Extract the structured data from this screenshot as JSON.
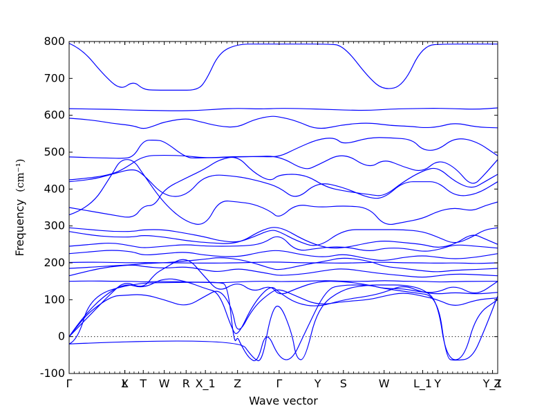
{
  "chart_data": {
    "type": "line",
    "xlabel": "Wave vector",
    "ylabel": "Frequency",
    "ylabel_unit": "(cm⁻¹)",
    "ylim": [
      -100,
      800
    ],
    "yticks": [
      -100,
      0,
      100,
      200,
      300,
      400,
      500,
      600,
      700,
      800
    ],
    "zero_line": true,
    "line_color": "#0000ff",
    "x_path_positions": [
      0,
      0.13,
      0.13,
      0.173,
      0.222,
      0.273,
      0.318,
      0.393,
      0.49,
      0.58,
      0.64,
      0.735,
      0.825,
      0.86,
      0.988,
      1.0
    ],
    "x_tick_labels": [
      "Γ",
      "X",
      "L",
      "T",
      "W",
      "R",
      "X_1",
      "Z",
      "Γ",
      "Y",
      "S",
      "W",
      "L_1",
      "Y",
      "Y_1",
      "Z"
    ],
    "series": [
      {
        "x": [
          0,
          0.03,
          0.08,
          0.12,
          0.15,
          0.173,
          0.2,
          0.25,
          0.3,
          0.32,
          0.35,
          0.393,
          0.45,
          0.49,
          0.55,
          0.6,
          0.64,
          0.7,
          0.735,
          0.78,
          0.825,
          0.88,
          0.95,
          1.0
        ],
        "y": [
          795,
          780,
          710,
          668,
          693,
          670,
          668,
          668,
          668,
          695,
          770,
          793,
          793,
          793,
          793,
          793,
          790,
          700,
          668,
          680,
          790,
          793,
          793,
          793
        ]
      },
      {
        "x": [
          0,
          0.05,
          0.1,
          0.15,
          0.2,
          0.25,
          0.3,
          0.35,
          0.393,
          0.45,
          0.49,
          0.55,
          0.6,
          0.65,
          0.7,
          0.75,
          0.8,
          0.85,
          0.9,
          0.95,
          1.0
        ],
        "y": [
          618,
          617,
          616,
          614,
          613,
          612,
          613,
          617,
          619,
          617,
          619,
          618,
          616,
          614,
          613,
          617,
          618,
          619,
          618,
          616,
          620
        ]
      },
      {
        "x": [
          0,
          0.05,
          0.1,
          0.15,
          0.173,
          0.2,
          0.222,
          0.273,
          0.3,
          0.35,
          0.393,
          0.43,
          0.47,
          0.49,
          0.53,
          0.58,
          0.64,
          0.7,
          0.75,
          0.8,
          0.825,
          0.86,
          0.9,
          0.95,
          1.0
        ],
        "y": [
          592,
          588,
          578,
          572,
          562,
          572,
          582,
          592,
          584,
          570,
          567,
          588,
          598,
          596,
          585,
          560,
          575,
          580,
          572,
          570,
          566,
          568,
          580,
          568,
          566
        ]
      },
      {
        "x": [
          0,
          0.05,
          0.1,
          0.12,
          0.15,
          0.173,
          0.2,
          0.222,
          0.273,
          0.3,
          0.35,
          0.393,
          0.45,
          0.49,
          0.53,
          0.58,
          0.62,
          0.64,
          0.7,
          0.75,
          0.8,
          0.825,
          0.86,
          0.9,
          0.95,
          1.0
        ],
        "y": [
          487,
          485,
          484,
          483,
          486,
          532,
          533,
          530,
          485,
          484,
          486,
          488,
          488,
          487,
          510,
          535,
          540,
          520,
          540,
          539,
          535,
          505,
          505,
          540,
          530,
          490
        ]
      },
      {
        "x": [
          0,
          0.05,
          0.1,
          0.13,
          0.173,
          0.222,
          0.273,
          0.318,
          0.393,
          0.43,
          0.49,
          0.55,
          0.58,
          0.64,
          0.7,
          0.735,
          0.78,
          0.825,
          0.86,
          0.9,
          0.94,
          0.97,
          1.0
        ],
        "y": [
          425,
          430,
          440,
          456,
          490,
          492,
          490,
          484,
          487,
          488,
          490,
          450,
          465,
          500,
          455,
          482,
          460,
          445,
          480,
          460,
          405,
          440,
          480
        ]
      },
      {
        "x": [
          0,
          0.05,
          0.1,
          0.15,
          0.173,
          0.222,
          0.273,
          0.318,
          0.393,
          0.45,
          0.49,
          0.53,
          0.58,
          0.64,
          0.7,
          0.735,
          0.78,
          0.825,
          0.86,
          0.9,
          0.95,
          1.0
        ],
        "y": [
          420,
          425,
          440,
          456,
          440,
          380,
          380,
          440,
          435,
          420,
          405,
          370,
          420,
          405,
          375,
          375,
          420,
          420,
          420,
          380,
          385,
          420
        ]
      },
      {
        "x": [
          0,
          0.05,
          0.1,
          0.15,
          0.173,
          0.2,
          0.222,
          0.273,
          0.318,
          0.35,
          0.393,
          0.43,
          0.47,
          0.49,
          0.55,
          0.6,
          0.64,
          0.7,
          0.735,
          0.78,
          0.825,
          0.86,
          0.9,
          0.94,
          0.97,
          1.0
        ],
        "y": [
          350,
          340,
          330,
          320,
          355,
          355,
          400,
          430,
          455,
          480,
          490,
          445,
          420,
          440,
          440,
          405,
          395,
          385,
          380,
          420,
          450,
          460,
          420,
          400,
          420,
          440
        ]
      },
      {
        "x": [
          0,
          0.05,
          0.1,
          0.12,
          0.15,
          0.173,
          0.222,
          0.273,
          0.318,
          0.35,
          0.393,
          0.43,
          0.47,
          0.49,
          0.53,
          0.58,
          0.64,
          0.7,
          0.735,
          0.78,
          0.825,
          0.86,
          0.9,
          0.94,
          0.97,
          1.0
        ],
        "y": [
          330,
          350,
          440,
          480,
          480,
          440,
          360,
          310,
          300,
          370,
          365,
          360,
          340,
          320,
          360,
          350,
          355,
          350,
          300,
          310,
          320,
          340,
          350,
          340,
          355,
          365
        ]
      },
      {
        "x": [
          0,
          0.05,
          0.1,
          0.15,
          0.173,
          0.222,
          0.273,
          0.318,
          0.35,
          0.393,
          0.43,
          0.47,
          0.49,
          0.53,
          0.58,
          0.64,
          0.7,
          0.735,
          0.78,
          0.825,
          0.86,
          0.9,
          0.94,
          0.97,
          1.0
        ],
        "y": [
          295,
          290,
          285,
          285,
          290,
          290,
          280,
          270,
          260,
          255,
          270,
          290,
          285,
          260,
          240,
          290,
          290,
          290,
          290,
          285,
          270,
          250,
          270,
          290,
          295
        ]
      },
      {
        "x": [
          0,
          0.05,
          0.1,
          0.15,
          0.173,
          0.222,
          0.273,
          0.318,
          0.393,
          0.45,
          0.49,
          0.55,
          0.6,
          0.64,
          0.7,
          0.735,
          0.78,
          0.825,
          0.86,
          0.9,
          0.94,
          0.97,
          1.0
        ],
        "y": [
          285,
          275,
          270,
          270,
          275,
          270,
          260,
          255,
          250,
          290,
          300,
          260,
          240,
          240,
          255,
          260,
          255,
          250,
          240,
          250,
          280,
          265,
          250
        ]
      },
      {
        "x": [
          0,
          0.05,
          0.1,
          0.15,
          0.173,
          0.222,
          0.273,
          0.318,
          0.393,
          0.45,
          0.49,
          0.53,
          0.58,
          0.64,
          0.7,
          0.735,
          0.78,
          0.825,
          0.86,
          0.9,
          0.95,
          1.0
        ],
        "y": [
          245,
          250,
          255,
          245,
          240,
          245,
          250,
          245,
          245,
          250,
          280,
          230,
          240,
          245,
          230,
          240,
          240,
          230,
          235,
          250,
          245,
          240
        ]
      },
      {
        "x": [
          0,
          0.05,
          0.1,
          0.15,
          0.173,
          0.222,
          0.273,
          0.318,
          0.393,
          0.45,
          0.49,
          0.55,
          0.6,
          0.64,
          0.7,
          0.735,
          0.78,
          0.825,
          0.86,
          0.9,
          0.95,
          1.0
        ],
        "y": [
          225,
          230,
          235,
          230,
          220,
          225,
          230,
          220,
          215,
          230,
          235,
          220,
          215,
          225,
          210,
          205,
          215,
          220,
          215,
          210,
          215,
          225
        ]
      },
      {
        "x": [
          0,
          0.05,
          0.1,
          0.15,
          0.173,
          0.222,
          0.273,
          0.318,
          0.393,
          0.45,
          0.49,
          0.55,
          0.6,
          0.64,
          0.7,
          0.735,
          0.78,
          0.825,
          0.86,
          0.9,
          0.95,
          1.0
        ],
        "y": [
          201,
          202,
          201,
          200,
          201,
          200,
          200,
          199,
          200,
          202,
          202,
          200,
          200,
          199,
          201,
          202,
          200,
          200,
          199,
          200,
          198,
          200
        ]
      },
      {
        "x": [
          0,
          0.05,
          0.1,
          0.15,
          0.173,
          0.222,
          0.273,
          0.318,
          0.35,
          0.393,
          0.43,
          0.47,
          0.49,
          0.55,
          0.6,
          0.64,
          0.7,
          0.735,
          0.78,
          0.825,
          0.86,
          0.9,
          0.95,
          1.0
        ],
        "y": [
          185,
          188,
          192,
          195,
          198,
          200,
          205,
          210,
          215,
          210,
          200,
          185,
          180,
          195,
          205,
          215,
          205,
          190,
          185,
          178,
          175,
          180,
          182,
          185
        ]
      },
      {
        "x": [
          0,
          0.05,
          0.1,
          0.15,
          0.173,
          0.222,
          0.273,
          0.318,
          0.35,
          0.393,
          0.43,
          0.47,
          0.49,
          0.55,
          0.6,
          0.64,
          0.7,
          0.735,
          0.78,
          0.825,
          0.86,
          0.9,
          0.95,
          1.0
        ],
        "y": [
          165,
          180,
          190,
          195,
          190,
          185,
          190,
          180,
          175,
          185,
          178,
          170,
          165,
          170,
          180,
          185,
          175,
          170,
          165,
          160,
          165,
          170,
          168,
          165
        ]
      },
      {
        "x": [
          0,
          0.05,
          0.1,
          0.15,
          0.173,
          0.222,
          0.273,
          0.318,
          0.35,
          0.393,
          0.43,
          0.47,
          0.49,
          0.55,
          0.6,
          0.64,
          0.7,
          0.735,
          0.78,
          0.825,
          0.86,
          0.9,
          0.95,
          1.0
        ],
        "y": [
          150,
          151,
          150,
          150,
          148,
          150,
          148,
          147,
          146,
          148,
          150,
          150,
          149,
          150,
          152,
          150,
          150,
          152,
          150,
          150,
          148,
          149,
          150,
          150
        ]
      },
      {
        "x": [
          0,
          0.05,
          0.1,
          0.13,
          0.173,
          0.2,
          0.222,
          0.273,
          0.318,
          0.35,
          0.393,
          0.43,
          0.47,
          0.49,
          0.53,
          0.58,
          0.64,
          0.7,
          0.735,
          0.78,
          0.825,
          0.86,
          0.9,
          0.95,
          1.0
        ],
        "y": [
          0,
          60,
          120,
          150,
          130,
          170,
          185,
          220,
          160,
          120,
          150,
          120,
          140,
          110,
          130,
          150,
          150,
          140,
          130,
          130,
          120,
          120,
          140,
          110,
          150
        ]
      },
      {
        "x": [
          0,
          0.03,
          0.08,
          0.13,
          0.173,
          0.222,
          0.273,
          0.318,
          0.35,
          0.38,
          0.393,
          0.43,
          0.47,
          0.49,
          0.53,
          0.58,
          0.64,
          0.7,
          0.735,
          0.78,
          0.825,
          0.86,
          0.9,
          0.95,
          1.0
        ],
        "y": [
          0,
          50,
          110,
          145,
          130,
          160,
          150,
          130,
          120,
          20,
          0,
          90,
          140,
          120,
          90,
          80,
          100,
          110,
          120,
          140,
          120,
          115,
          120,
          115,
          120
        ]
      },
      {
        "x": [
          0,
          0.02,
          0.05,
          0.1,
          0.13,
          0.173,
          0.222,
          0.273,
          0.318,
          0.35,
          0.38,
          0.393,
          0.43,
          0.47,
          0.49,
          0.53,
          0.58,
          0.64,
          0.7,
          0.735,
          0.78,
          0.825,
          0.86,
          0.9,
          0.95,
          1.0
        ],
        "y": [
          0,
          30,
          70,
          110,
          112,
          115,
          100,
          80,
          110,
          130,
          80,
          0,
          80,
          120,
          130,
          110,
          85,
          95,
          100,
          110,
          120,
          110,
          100,
          80,
          100,
          105
        ]
      },
      {
        "x": [
          0,
          0.02,
          0.05,
          0.15,
          0.25,
          0.35,
          0.37,
          0.385,
          0.393,
          0.4,
          0.42,
          0.44,
          0.46,
          0.49,
          0.52,
          0.55,
          0.6,
          0.64,
          0.7,
          0.735,
          0.8,
          0.86,
          0.88,
          0.9,
          0.94,
          0.97,
          1.0
        ],
        "y": [
          -20,
          -10,
          110,
          145,
          147,
          148,
          140,
          -20,
          0,
          -20,
          -60,
          -70,
          20,
          -60,
          -65,
          10,
          130,
          140,
          140,
          130,
          120,
          110,
          -60,
          -65,
          -60,
          20,
          110
        ]
      },
      {
        "x": [
          0,
          0.393,
          0.43,
          0.45,
          0.47,
          0.49,
          0.52,
          0.53,
          0.55,
          0.58,
          0.64,
          0.7,
          0.735,
          0.78,
          0.825,
          0.86,
          0.88,
          0.92,
          0.95,
          1.0
        ],
        "y": [
          -20,
          0,
          -60,
          -70,
          60,
          95,
          10,
          -60,
          -65,
          80,
          130,
          140,
          140,
          140,
          130,
          95,
          -60,
          -65,
          60,
          100
        ]
      }
    ]
  }
}
